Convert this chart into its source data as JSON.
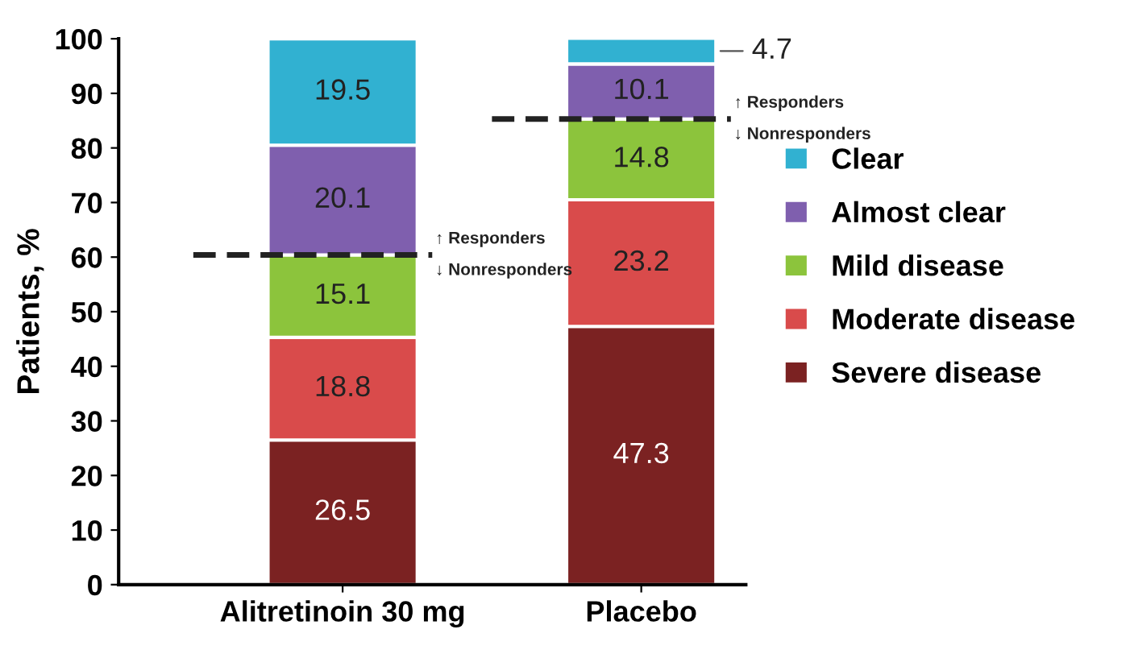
{
  "chart_data": {
    "type": "bar",
    "stacked": true,
    "ylabel": "Patients, %",
    "categories": [
      "Alitretinoin 30 mg",
      "Placebo"
    ],
    "series": [
      {
        "name": "Severe disease",
        "color": "#7b2222",
        "values": [
          26.5,
          47.3
        ]
      },
      {
        "name": "Moderate disease",
        "color": "#d94b4b",
        "values": [
          18.8,
          23.2
        ]
      },
      {
        "name": "Mild disease",
        "color": "#8cc43c",
        "values": [
          15.1,
          14.8
        ]
      },
      {
        "name": "Almost clear",
        "color": "#7f5fae",
        "values": [
          20.1,
          10.1
        ]
      },
      {
        "name": "Clear",
        "color": "#31b1d1",
        "values": [
          19.5,
          4.7
        ]
      }
    ],
    "ylim": [
      0,
      100
    ],
    "yticks": [
      0,
      10,
      20,
      30,
      40,
      50,
      60,
      70,
      80,
      90,
      100
    ],
    "data_labels": true,
    "legend": "right",
    "grid": false,
    "ref_lines": [
      {
        "axis": "y",
        "value": 60.4,
        "label": "↑ Responders\n↓ Nonresponders",
        "color": "#222222",
        "line_style": "dashed"
      },
      {
        "axis": "y",
        "value": 85.3,
        "label": "↑ Responders\n↓ Nonresponders",
        "color": "#222222",
        "line_style": "dashed"
      }
    ]
  }
}
